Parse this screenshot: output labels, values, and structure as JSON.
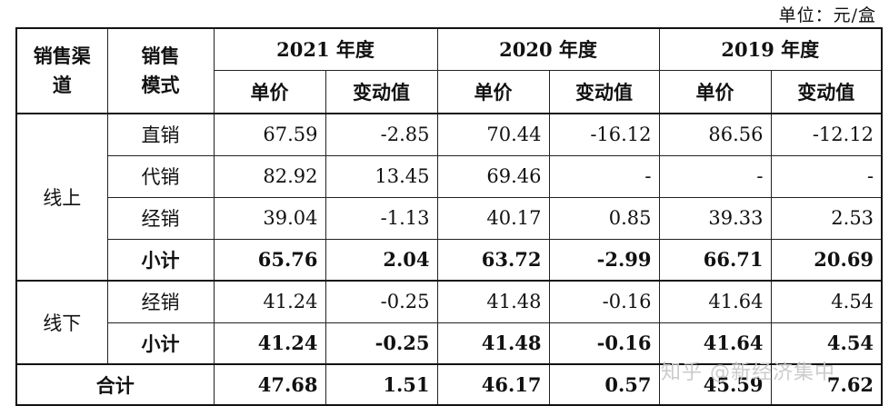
{
  "unit": "单位：元/盒",
  "header": {
    "channel": "销售渠道",
    "mode": "销售模式",
    "years": [
      "2021 年度",
      "2020 年度",
      "2019 年度"
    ],
    "sub": [
      "单价",
      "变动值"
    ]
  },
  "online": {
    "label": "线上",
    "rows": [
      {
        "mode": "直销",
        "v": [
          "67.59",
          "-2.85",
          "70.44",
          "-16.12",
          "86.56",
          "-12.12"
        ]
      },
      {
        "mode": "代销",
        "v": [
          "82.92",
          "13.45",
          "69.46",
          "-",
          "-",
          "-"
        ]
      },
      {
        "mode": "经销",
        "v": [
          "39.04",
          "-1.13",
          "40.17",
          "0.85",
          "39.33",
          "2.53"
        ]
      },
      {
        "mode": "小计",
        "v": [
          "65.76",
          "2.04",
          "63.72",
          "-2.99",
          "66.71",
          "20.69"
        ]
      }
    ]
  },
  "offline": {
    "label": "线下",
    "rows": [
      {
        "mode": "经销",
        "v": [
          "41.24",
          "-0.25",
          "41.48",
          "-0.16",
          "41.64",
          "4.54"
        ]
      },
      {
        "mode": "小计",
        "v": [
          "41.24",
          "-0.25",
          "41.48",
          "-0.16",
          "41.64",
          "4.54"
        ]
      }
    ]
  },
  "total": {
    "label": "合计",
    "v": [
      "47.68",
      "1.51",
      "46.17",
      "0.57",
      "45.59",
      "7.62"
    ]
  },
  "watermark": "知乎 @新经济集中"
}
